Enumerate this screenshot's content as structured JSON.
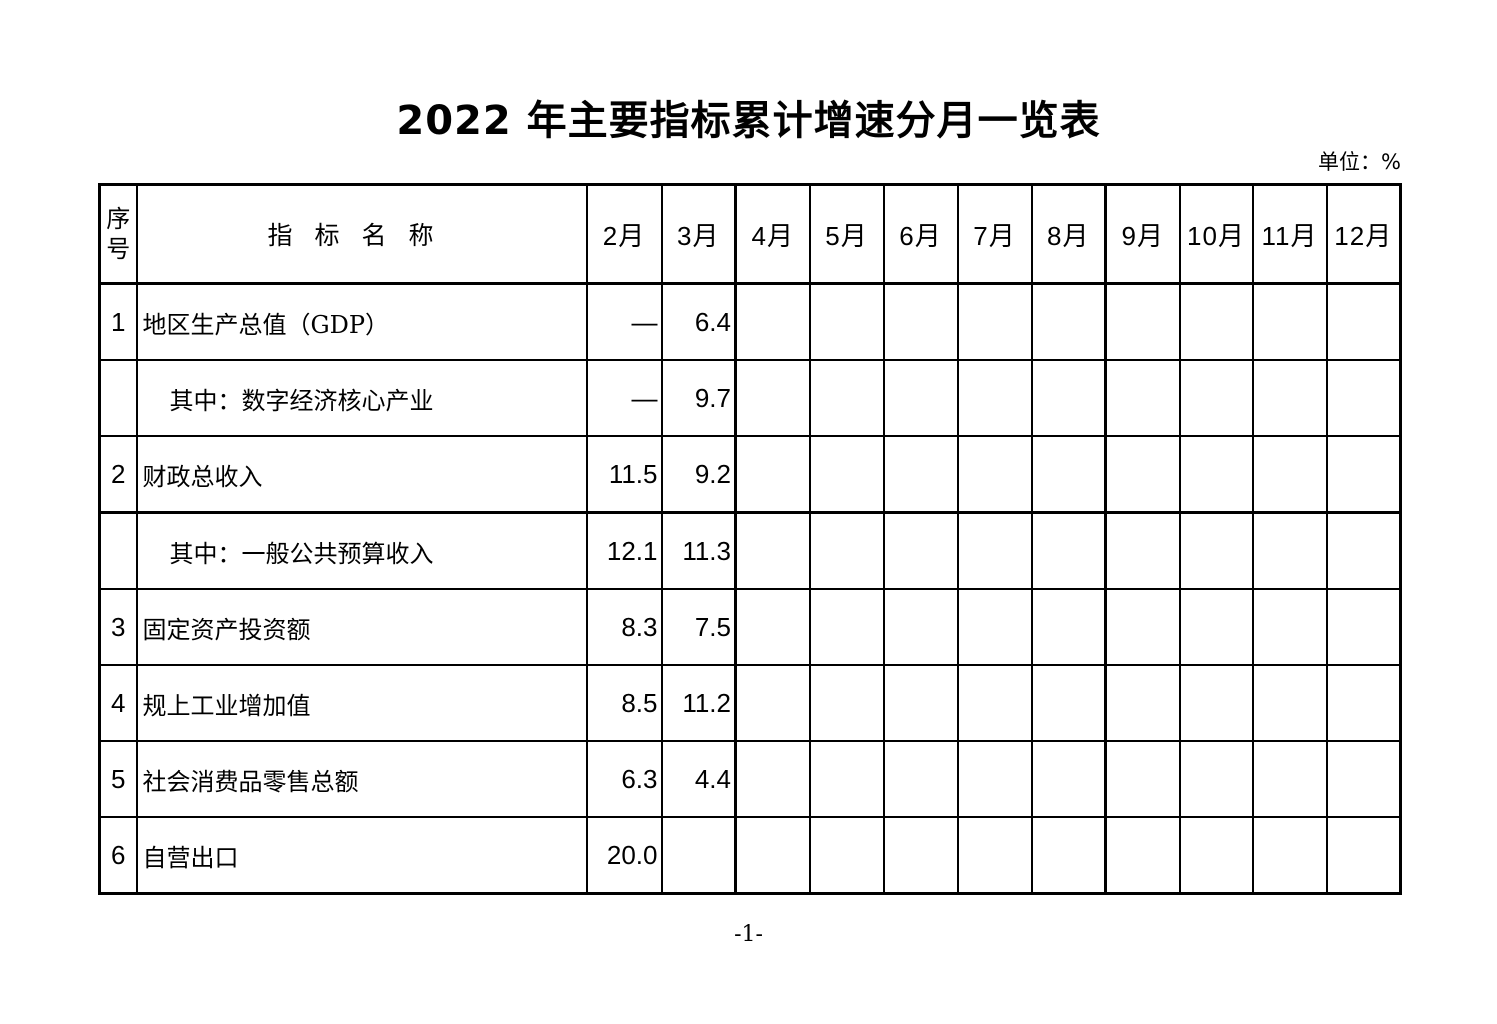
{
  "title": "2022 年主要指标累计增速分月一览表",
  "unit": "单位：%",
  "table": {
    "headers": {
      "seq": "序号",
      "name": "指标名称",
      "months": [
        "2月",
        "3月",
        "4月",
        "5月",
        "6月",
        "7月",
        "8月",
        "9月",
        "10月",
        "11月",
        "12月"
      ]
    },
    "rows": [
      {
        "seq": "1",
        "name": "地区生产总值（GDP）",
        "sub": false,
        "values": [
          "—",
          "6.4",
          "",
          "",
          "",
          "",
          "",
          "",
          "",
          "",
          ""
        ]
      },
      {
        "seq": "",
        "name": "其中：数字经济核心产业",
        "sub": true,
        "values": [
          "—",
          "9.7",
          "",
          "",
          "",
          "",
          "",
          "",
          "",
          "",
          ""
        ]
      },
      {
        "seq": "2",
        "name": "财政总收入",
        "sub": false,
        "values": [
          "11.5",
          "9.2",
          "",
          "",
          "",
          "",
          "",
          "",
          "",
          "",
          ""
        ]
      },
      {
        "seq": "",
        "name": "其中：一般公共预算收入",
        "sub": true,
        "values": [
          "12.1",
          "11.3",
          "",
          "",
          "",
          "",
          "",
          "",
          "",
          "",
          ""
        ]
      },
      {
        "seq": "3",
        "name": "固定资产投资额",
        "sub": false,
        "values": [
          "8.3",
          "7.5",
          "",
          "",
          "",
          "",
          "",
          "",
          "",
          "",
          ""
        ]
      },
      {
        "seq": "4",
        "name": "规上工业增加值",
        "sub": false,
        "values": [
          "8.5",
          "11.2",
          "",
          "",
          "",
          "",
          "",
          "",
          "",
          "",
          ""
        ]
      },
      {
        "seq": "5",
        "name": "社会消费品零售总额",
        "sub": false,
        "values": [
          "6.3",
          "4.4",
          "",
          "",
          "",
          "",
          "",
          "",
          "",
          "",
          ""
        ]
      },
      {
        "seq": "6",
        "name": "自营出口",
        "sub": false,
        "values": [
          "20.0",
          "",
          "",
          "",
          "",
          "",
          "",
          "",
          "",
          "",
          ""
        ]
      }
    ]
  },
  "page_number": "-1-"
}
